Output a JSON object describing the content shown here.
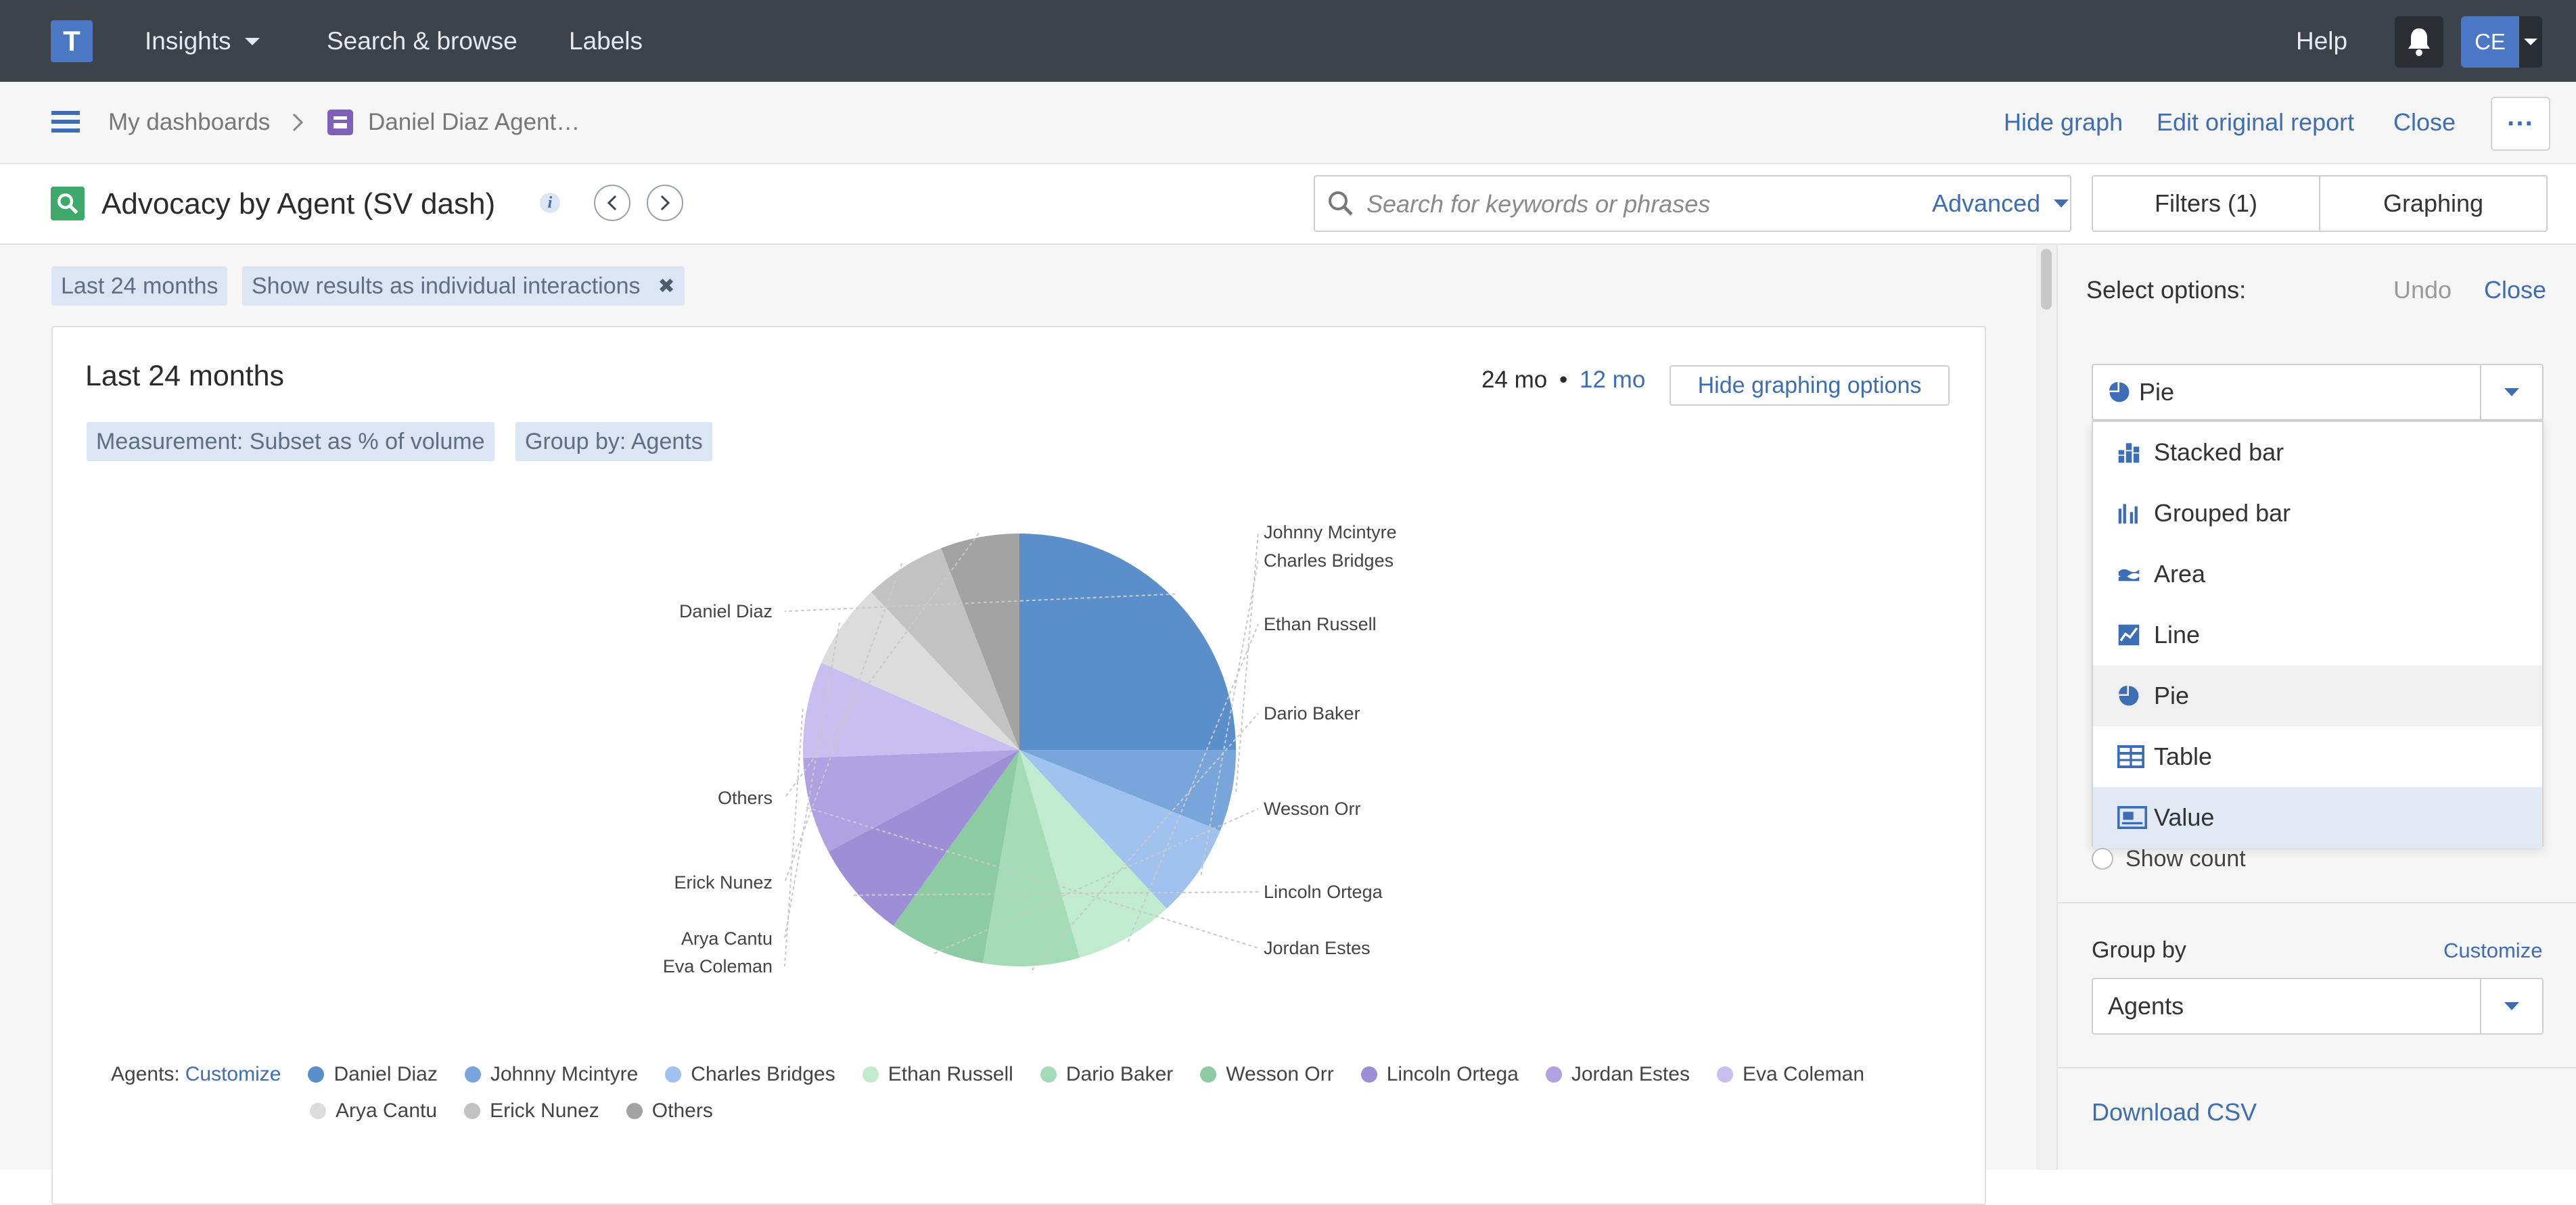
{
  "topnav": {
    "logo": "T",
    "insights": "Insights",
    "search_browse": "Search & browse",
    "labels": "Labels",
    "help": "Help",
    "avatar": "CE"
  },
  "breadcrumb": {
    "dashboards": "My dashboards",
    "current": "Daniel Diaz Agent…",
    "hide_graph": "Hide graph",
    "edit_report": "Edit original report",
    "close": "Close"
  },
  "report": {
    "title": "Advocacy by Agent (SV dash)",
    "search_placeholder": "Search for keywords or phrases",
    "advanced": "Advanced",
    "tabs": [
      "Filters (1)",
      "Graphing"
    ]
  },
  "filters": {
    "chip1": "Last 24 months",
    "chip2": "Show results as individual interactions"
  },
  "card": {
    "title": "Last 24 months",
    "range_active": "24 mo",
    "range_sep": "•",
    "range_alt": "12 mo",
    "hide_graphing": "Hide graphing options",
    "measurement": "Measurement: Subset as % of volume",
    "group_by": "Group by: Agents"
  },
  "chart_data": {
    "type": "pie",
    "categories": [
      "Daniel Diaz",
      "Johnny Mcintyre",
      "Charles Bridges",
      "Ethan Russell",
      "Dario Baker",
      "Wesson Orr",
      "Lincoln Ortega",
      "Jordan Estes",
      "Eva Coleman",
      "Arya Cantu",
      "Erick Nunez",
      "Others"
    ],
    "values": [
      25.0,
      6.1,
      7.0,
      7.4,
      7.2,
      7.2,
      7.3,
      7.2,
      7.2,
      6.4,
      6.1,
      5.9
    ],
    "colors": [
      "#5b8fcb",
      "#78a6da",
      "#9fc2ee",
      "#c0ebcf",
      "#a3dcb6",
      "#8dcba3",
      "#9d8fd6",
      "#b0a2e2",
      "#c8bff0",
      "#dcdcdc",
      "#c2c2c2",
      "#a3a3a3"
    ],
    "legend_label": "Agents:",
    "legend_customize": "Customize",
    "legend_placement": "bottom"
  },
  "panel": {
    "select_options": "Select options:",
    "undo": "Undo",
    "close": "Close",
    "chart_type_selected": "Pie",
    "chart_types": [
      {
        "label": "Stacked bar",
        "icon": "stacked-bar-icon"
      },
      {
        "label": "Grouped bar",
        "icon": "grouped-bar-icon"
      },
      {
        "label": "Area",
        "icon": "area-icon"
      },
      {
        "label": "Line",
        "icon": "line-icon"
      },
      {
        "label": "Pie",
        "icon": "pie-icon"
      },
      {
        "label": "Table",
        "icon": "table-icon"
      },
      {
        "label": "Value",
        "icon": "value-icon"
      }
    ],
    "show_count": "Show count",
    "group_by_label": "Group by",
    "group_by_customize": "Customize",
    "group_by_value": "Agents",
    "download_csv": "Download CSV"
  }
}
